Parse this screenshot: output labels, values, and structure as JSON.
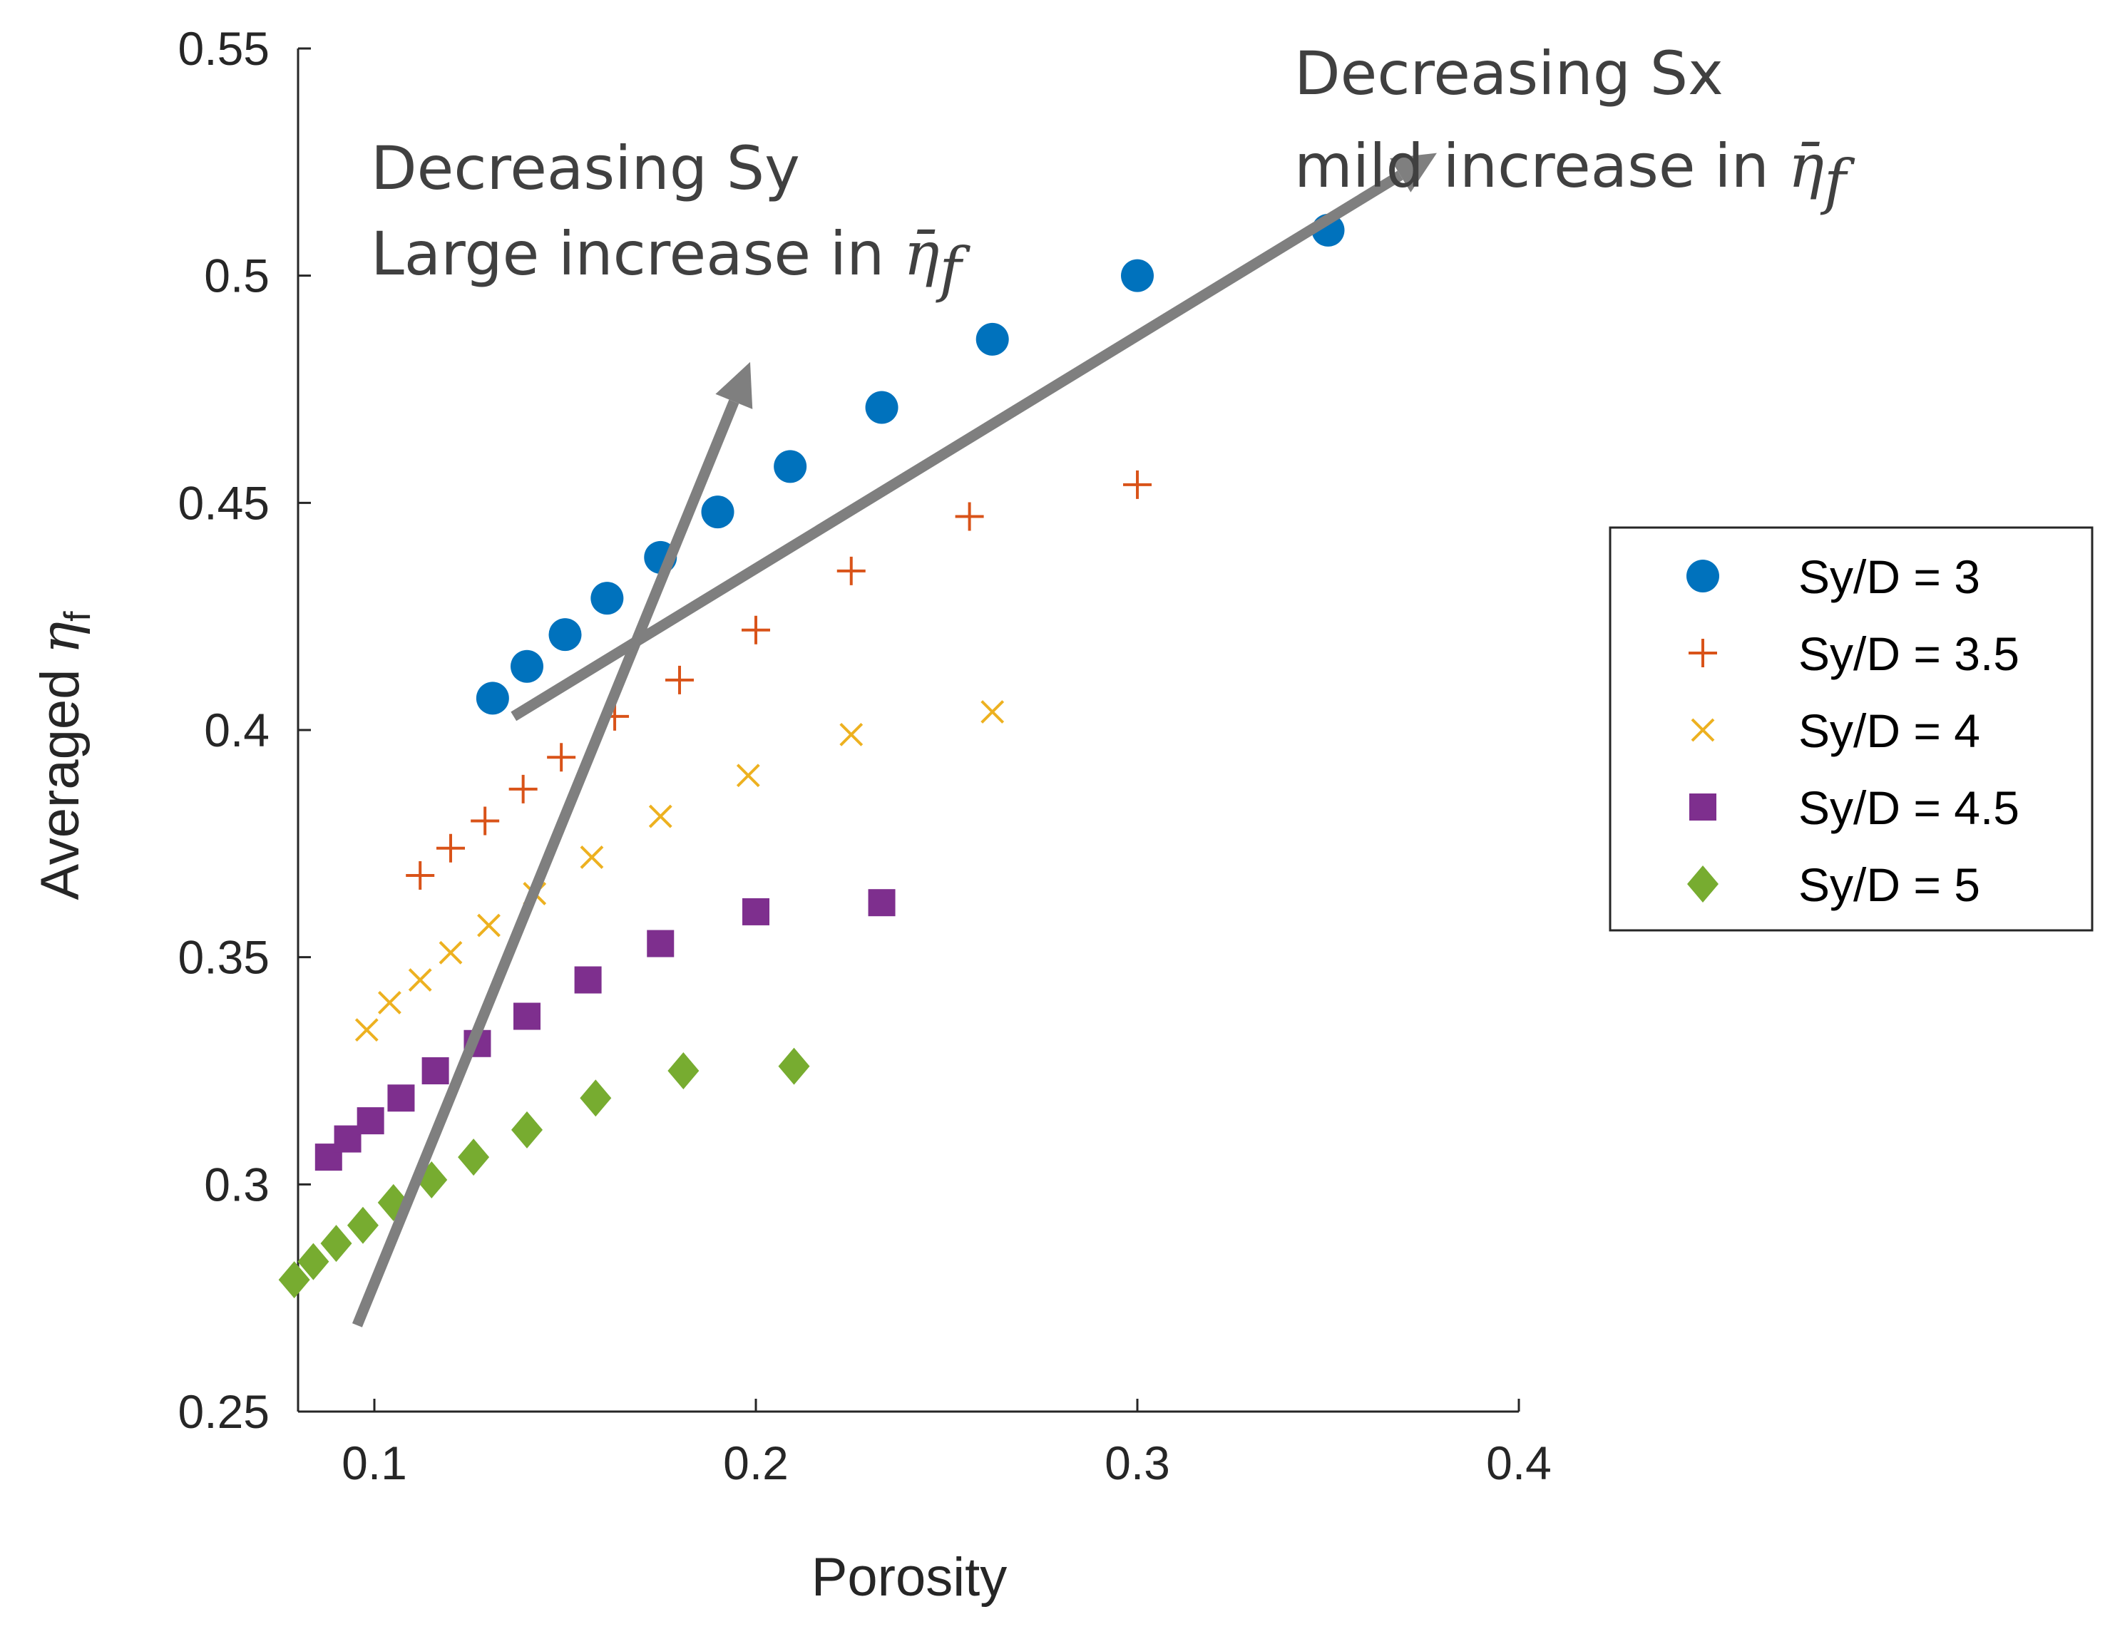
{
  "chart_data": {
    "type": "scatter",
    "title": "",
    "xlabel": "Porosity",
    "ylabel_main": "Averaged ",
    "ylabel_symbol": "η",
    "ylabel_sub": "f",
    "xlim": [
      0.08,
      0.4
    ],
    "ylim": [
      0.25,
      0.55
    ],
    "xticks": [
      0.1,
      0.2,
      0.3,
      0.4
    ],
    "xtick_labels": [
      "0.1",
      "0.2",
      "0.3",
      "0.4"
    ],
    "yticks": [
      0.25,
      0.3,
      0.35,
      0.4,
      0.45,
      0.5,
      0.55
    ],
    "ytick_labels": [
      "0.25",
      "0.3",
      "0.35",
      "0.4",
      "0.45",
      "0.5",
      "0.55"
    ],
    "grid": false,
    "legend_position": "right",
    "series": [
      {
        "name": "Sy/D = 3",
        "marker": "circle",
        "color": "#0072BD",
        "x": [
          0.131,
          0.14,
          0.15,
          0.161,
          0.175,
          0.19,
          0.209,
          0.233,
          0.262,
          0.3,
          0.35
        ],
        "y": [
          0.407,
          0.414,
          0.421,
          0.429,
          0.438,
          0.448,
          0.458,
          0.471,
          0.486,
          0.5,
          0.51
        ]
      },
      {
        "name": "Sy/D = 3.5",
        "marker": "plus",
        "color": "#D95319",
        "x": [
          0.112,
          0.12,
          0.129,
          0.139,
          0.149,
          0.163,
          0.18,
          0.2,
          0.225,
          0.256,
          0.3
        ],
        "y": [
          0.368,
          0.374,
          0.38,
          0.387,
          0.394,
          0.403,
          0.411,
          0.422,
          0.435,
          0.447,
          0.454
        ]
      },
      {
        "name": "Sy/D = 4",
        "marker": "x",
        "color": "#EDB120",
        "x": [
          0.098,
          0.104,
          0.112,
          0.12,
          0.13,
          0.142,
          0.157,
          0.175,
          0.198,
          0.225,
          0.262
        ],
        "y": [
          0.334,
          0.34,
          0.345,
          0.351,
          0.357,
          0.364,
          0.372,
          0.381,
          0.39,
          0.399,
          0.404
        ]
      },
      {
        "name": "Sy/D = 4.5",
        "marker": "square",
        "color": "#7E2F8E",
        "x": [
          0.088,
          0.093,
          0.099,
          0.107,
          0.116,
          0.127,
          0.14,
          0.156,
          0.175,
          0.2,
          0.233
        ],
        "y": [
          0.306,
          0.31,
          0.314,
          0.319,
          0.325,
          0.331,
          0.337,
          0.345,
          0.353,
          0.36,
          0.362
        ]
      },
      {
        "name": "Sy/D = 5",
        "marker": "diamond",
        "color": "#77AC30",
        "x": [
          0.079,
          0.084,
          0.09,
          0.097,
          0.105,
          0.115,
          0.126,
          0.14,
          0.158,
          0.181,
          0.21
        ],
        "y": [
          0.279,
          0.283,
          0.287,
          0.291,
          0.296,
          0.301,
          0.306,
          0.312,
          0.319,
          0.325,
          0.326
        ]
      }
    ],
    "annotations": {
      "sy_line1": "Decreasing Sy",
      "sy_line2": "Large increase in ",
      "sx_line1": "Decreasing Sx",
      "sx_line2": "mild increase in ",
      "eta_bar": "η̄",
      "eta_sub": "f",
      "arrow_color": "#7f7f7f"
    }
  }
}
